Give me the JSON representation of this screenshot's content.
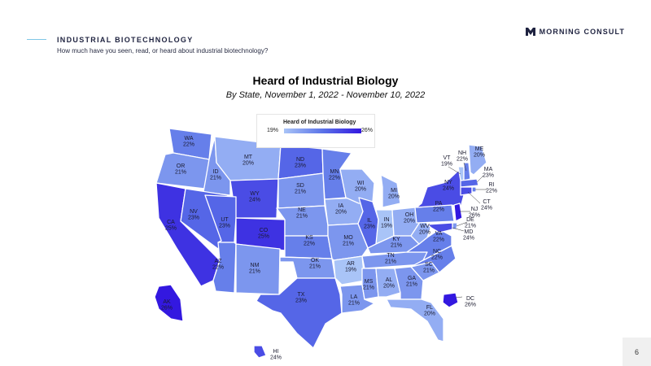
{
  "header": {
    "section_title": "INDUSTRIAL BIOTECHNOLOGY",
    "question": "How much have you seen, read, or heard about industrial biotechnology?",
    "brand_name": "MORNING CONSULT",
    "brand_icon": "morning-consult-logo-icon"
  },
  "map": {
    "title": "Heard of Industrial Biology",
    "subtitle": "By State, November 1, 2022 - November 10, 2022",
    "legend": {
      "title": "Heard of Industrial Biology",
      "min": "19%",
      "max": "26%",
      "color_low": "#a9c4f7",
      "color_high": "#3318e0"
    },
    "states": [
      {
        "abbr": "WA",
        "value": "22%"
      },
      {
        "abbr": "OR",
        "value": "21%"
      },
      {
        "abbr": "CA",
        "value": "25%"
      },
      {
        "abbr": "ID",
        "value": "21%"
      },
      {
        "abbr": "NV",
        "value": "23%"
      },
      {
        "abbr": "MT",
        "value": "20%"
      },
      {
        "abbr": "WY",
        "value": "24%"
      },
      {
        "abbr": "UT",
        "value": "23%"
      },
      {
        "abbr": "AZ",
        "value": "22%"
      },
      {
        "abbr": "CO",
        "value": "25%"
      },
      {
        "abbr": "NM",
        "value": "21%"
      },
      {
        "abbr": "ND",
        "value": "23%"
      },
      {
        "abbr": "SD",
        "value": "21%"
      },
      {
        "abbr": "NE",
        "value": "21%"
      },
      {
        "abbr": "KS",
        "value": "22%"
      },
      {
        "abbr": "OK",
        "value": "21%"
      },
      {
        "abbr": "TX",
        "value": "23%"
      },
      {
        "abbr": "MN",
        "value": "22%"
      },
      {
        "abbr": "IA",
        "value": "20%"
      },
      {
        "abbr": "MO",
        "value": "21%"
      },
      {
        "abbr": "AR",
        "value": "19%"
      },
      {
        "abbr": "LA",
        "value": "21%"
      },
      {
        "abbr": "WI",
        "value": "20%"
      },
      {
        "abbr": "IL",
        "value": "23%"
      },
      {
        "abbr": "MI",
        "value": "20%"
      },
      {
        "abbr": "IN",
        "value": "19%"
      },
      {
        "abbr": "OH",
        "value": "20%"
      },
      {
        "abbr": "KY",
        "value": "21%"
      },
      {
        "abbr": "TN",
        "value": "21%"
      },
      {
        "abbr": "MS",
        "value": "21%"
      },
      {
        "abbr": "AL",
        "value": "20%"
      },
      {
        "abbr": "GA",
        "value": "21%"
      },
      {
        "abbr": "FL",
        "value": "20%"
      },
      {
        "abbr": "SC",
        "value": "21%"
      },
      {
        "abbr": "NC",
        "value": "22%"
      },
      {
        "abbr": "VA",
        "value": "22%"
      },
      {
        "abbr": "WV",
        "value": "20%"
      },
      {
        "abbr": "PA",
        "value": "22%"
      },
      {
        "abbr": "NY",
        "value": "24%"
      },
      {
        "abbr": "VT",
        "value": "19%"
      },
      {
        "abbr": "NH",
        "value": "22%"
      },
      {
        "abbr": "ME",
        "value": "20%"
      },
      {
        "abbr": "MA",
        "value": "23%"
      },
      {
        "abbr": "RI",
        "value": "22%"
      },
      {
        "abbr": "CT",
        "value": "24%"
      },
      {
        "abbr": "NJ",
        "value": "26%"
      },
      {
        "abbr": "DE",
        "value": "21%"
      },
      {
        "abbr": "MD",
        "value": "24%"
      },
      {
        "abbr": "DC",
        "value": "26%"
      },
      {
        "abbr": "AK",
        "value": "26%"
      },
      {
        "abbr": "HI",
        "value": "24%"
      }
    ]
  },
  "footer": {
    "page_number": "6"
  }
}
